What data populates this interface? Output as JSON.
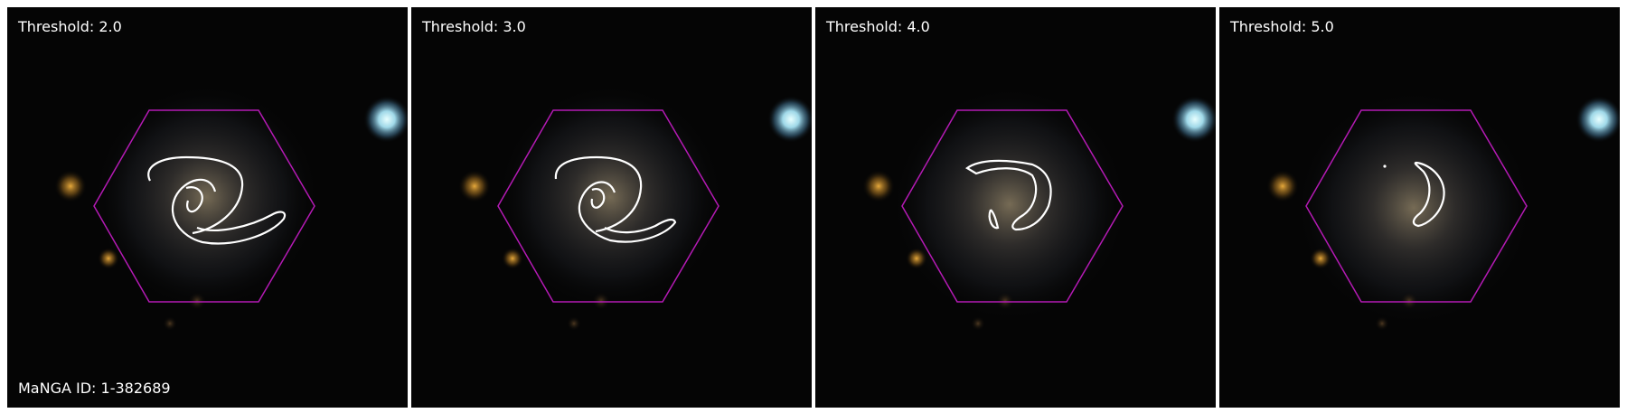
{
  "panels": [
    {
      "threshold_label": "Threshold: 2.0"
    },
    {
      "threshold_label": "Threshold: 3.0"
    },
    {
      "threshold_label": "Threshold: 4.0"
    },
    {
      "threshold_label": "Threshold: 5.0"
    }
  ],
  "manga_id_label": "MaNGA ID: 1-382689",
  "colors": {
    "background": "#050505",
    "separator": "#ffffff",
    "hexagon": "#b41ab4",
    "contour": "#ffffff",
    "text": "#ffffff"
  }
}
